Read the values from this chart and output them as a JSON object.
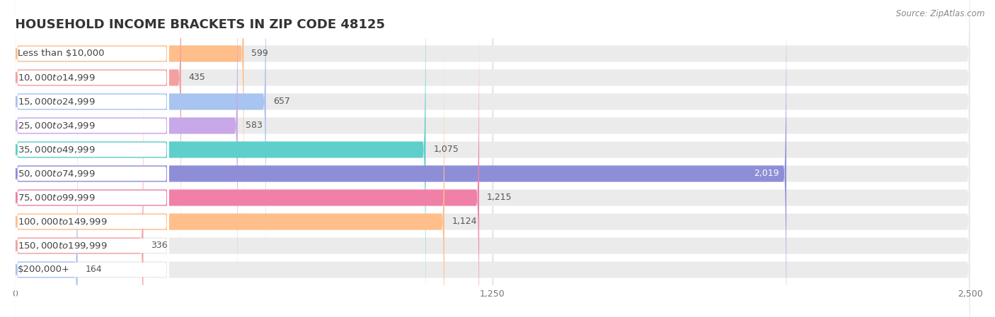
{
  "title": "HOUSEHOLD INCOME BRACKETS IN ZIP CODE 48125",
  "source": "Source: ZipAtlas.com",
  "categories": [
    "Less than $10,000",
    "$10,000 to $14,999",
    "$15,000 to $24,999",
    "$25,000 to $34,999",
    "$35,000 to $49,999",
    "$50,000 to $74,999",
    "$75,000 to $99,999",
    "$100,000 to $149,999",
    "$150,000 to $199,999",
    "$200,000+"
  ],
  "values": [
    599,
    435,
    657,
    583,
    1075,
    2019,
    1215,
    1124,
    336,
    164
  ],
  "bar_colors": [
    "#FFBE8A",
    "#F4A0A0",
    "#A8C4F0",
    "#C8A8E8",
    "#5ECFCA",
    "#8E8ED8",
    "#F080A8",
    "#FFBE8A",
    "#F4A0A0",
    "#A8C4F0"
  ],
  "xlim": [
    0,
    2500
  ],
  "xticks": [
    0,
    1250,
    2500
  ],
  "background_color": "#ffffff",
  "bar_bg_color": "#ebebeb",
  "title_fontsize": 13,
  "label_fontsize": 9.5,
  "value_fontsize": 9,
  "source_fontsize": 8.5,
  "inside_label_index": 5,
  "inside_label_value_color": "#ffffff"
}
